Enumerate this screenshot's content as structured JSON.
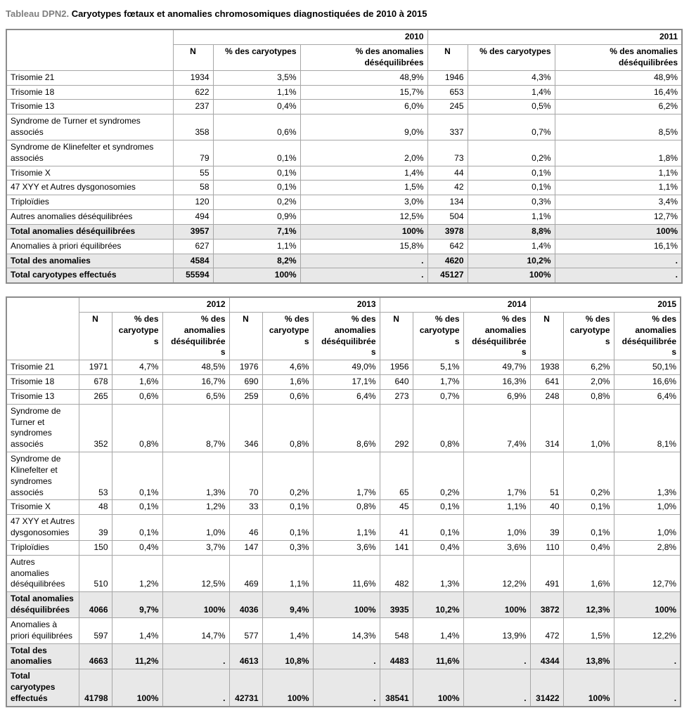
{
  "title": {
    "prefix": "Tableau DPN2.",
    "main": "Caryotypes fœtaux et anomalies chromosomiques diagnostiquées de 2010 à 2015"
  },
  "column_headers": {
    "n": "N",
    "pct_caryotypes": "% des caryotypes",
    "pct_anomalies": "% des anomalies déséquilibrées"
  },
  "table1": {
    "years": [
      "2010",
      "2011"
    ],
    "rows": [
      {
        "label": "Trisomie 21",
        "total": false,
        "values": [
          "1934",
          "3,5%",
          "48,9%",
          "1946",
          "4,3%",
          "48,9%"
        ]
      },
      {
        "label": "Trisomie 18",
        "total": false,
        "values": [
          "622",
          "1,1%",
          "15,7%",
          "653",
          "1,4%",
          "16,4%"
        ]
      },
      {
        "label": "Trisomie 13",
        "total": false,
        "values": [
          "237",
          "0,4%",
          "6,0%",
          "245",
          "0,5%",
          "6,2%"
        ]
      },
      {
        "label": "Syndrome de Turner et syndromes associés",
        "total": false,
        "values": [
          "358",
          "0,6%",
          "9,0%",
          "337",
          "0,7%",
          "8,5%"
        ]
      },
      {
        "label": "Syndrome de Klinefelter et syndromes associés",
        "total": false,
        "values": [
          "79",
          "0,1%",
          "2,0%",
          "73",
          "0,2%",
          "1,8%"
        ]
      },
      {
        "label": "Trisomie X",
        "total": false,
        "values": [
          "55",
          "0,1%",
          "1,4%",
          "44",
          "0,1%",
          "1,1%"
        ]
      },
      {
        "label": "47 XYY et Autres dysgonosomies",
        "total": false,
        "values": [
          "58",
          "0,1%",
          "1,5%",
          "42",
          "0,1%",
          "1,1%"
        ]
      },
      {
        "label": "Triploïdies",
        "total": false,
        "values": [
          "120",
          "0,2%",
          "3,0%",
          "134",
          "0,3%",
          "3,4%"
        ]
      },
      {
        "label": "Autres anomalies déséquilibrées",
        "total": false,
        "values": [
          "494",
          "0,9%",
          "12,5%",
          "504",
          "1,1%",
          "12,7%"
        ]
      },
      {
        "label": "Total anomalies déséquilibrées",
        "total": true,
        "values": [
          "3957",
          "7,1%",
          "100%",
          "3978",
          "8,8%",
          "100%"
        ]
      },
      {
        "label": "Anomalies à priori équilibrées",
        "total": false,
        "values": [
          "627",
          "1,1%",
          "15,8%",
          "642",
          "1,4%",
          "16,1%"
        ]
      },
      {
        "label": "Total des anomalies",
        "total": true,
        "values": [
          "4584",
          "8,2%",
          ".",
          "4620",
          "10,2%",
          "."
        ]
      },
      {
        "label": "Total caryotypes effectués",
        "total": true,
        "values": [
          "55594",
          "100%",
          ".",
          "45127",
          "100%",
          "."
        ]
      }
    ]
  },
  "table2": {
    "years": [
      "2012",
      "2013",
      "2014",
      "2015"
    ],
    "rows": [
      {
        "label": "Trisomie 21",
        "total": false,
        "values": [
          "1971",
          "4,7%",
          "48,5%",
          "1976",
          "4,6%",
          "49,0%",
          "1956",
          "5,1%",
          "49,7%",
          "1938",
          "6,2%",
          "50,1%"
        ]
      },
      {
        "label": "Trisomie 18",
        "total": false,
        "values": [
          "678",
          "1,6%",
          "16,7%",
          "690",
          "1,6%",
          "17,1%",
          "640",
          "1,7%",
          "16,3%",
          "641",
          "2,0%",
          "16,6%"
        ]
      },
      {
        "label": "Trisomie 13",
        "total": false,
        "values": [
          "265",
          "0,6%",
          "6,5%",
          "259",
          "0,6%",
          "6,4%",
          "273",
          "0,7%",
          "6,9%",
          "248",
          "0,8%",
          "6,4%"
        ]
      },
      {
        "label": "Syndrome de Turner et syndromes associés",
        "total": false,
        "values": [
          "352",
          "0,8%",
          "8,7%",
          "346",
          "0,8%",
          "8,6%",
          "292",
          "0,8%",
          "7,4%",
          "314",
          "1,0%",
          "8,1%"
        ]
      },
      {
        "label": "Syndrome de Klinefelter et syndromes associés",
        "total": false,
        "values": [
          "53",
          "0,1%",
          "1,3%",
          "70",
          "0,2%",
          "1,7%",
          "65",
          "0,2%",
          "1,7%",
          "51",
          "0,2%",
          "1,3%"
        ]
      },
      {
        "label": "Trisomie X",
        "total": false,
        "values": [
          "48",
          "0,1%",
          "1,2%",
          "33",
          "0,1%",
          "0,8%",
          "45",
          "0,1%",
          "1,1%",
          "40",
          "0,1%",
          "1,0%"
        ]
      },
      {
        "label": "47 XYY et Autres dysgonosomies",
        "total": false,
        "values": [
          "39",
          "0,1%",
          "1,0%",
          "46",
          "0,1%",
          "1,1%",
          "41",
          "0,1%",
          "1,0%",
          "39",
          "0,1%",
          "1,0%"
        ]
      },
      {
        "label": "Triploïdies",
        "total": false,
        "values": [
          "150",
          "0,4%",
          "3,7%",
          "147",
          "0,3%",
          "3,6%",
          "141",
          "0,4%",
          "3,6%",
          "110",
          "0,4%",
          "2,8%"
        ]
      },
      {
        "label": "Autres anomalies déséquilibrées",
        "total": false,
        "values": [
          "510",
          "1,2%",
          "12,5%",
          "469",
          "1,1%",
          "11,6%",
          "482",
          "1,3%",
          "12,2%",
          "491",
          "1,6%",
          "12,7%"
        ]
      },
      {
        "label": "Total anomalies déséquilibrées",
        "total": true,
        "values": [
          "4066",
          "9,7%",
          "100%",
          "4036",
          "9,4%",
          "100%",
          "3935",
          "10,2%",
          "100%",
          "3872",
          "12,3%",
          "100%"
        ]
      },
      {
        "label": "Anomalies à priori équilibrées",
        "total": false,
        "values": [
          "597",
          "1,4%",
          "14,7%",
          "577",
          "1,4%",
          "14,3%",
          "548",
          "1,4%",
          "13,9%",
          "472",
          "1,5%",
          "12,2%"
        ]
      },
      {
        "label": "Total des anomalies",
        "total": true,
        "values": [
          "4663",
          "11,2%",
          ".",
          "4613",
          "10,8%",
          ".",
          "4483",
          "11,6%",
          ".",
          "4344",
          "13,8%",
          "."
        ]
      },
      {
        "label": "Total caryotypes effectués",
        "total": true,
        "values": [
          "41798",
          "100%",
          ".",
          "42731",
          "100%",
          ".",
          "38541",
          "100%",
          ".",
          "31422",
          "100%",
          "."
        ]
      }
    ]
  }
}
